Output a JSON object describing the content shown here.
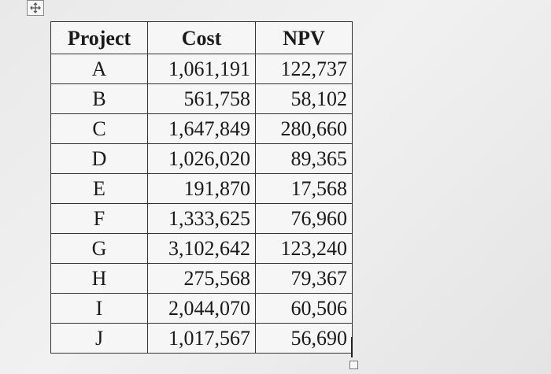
{
  "table": {
    "header": [
      "Project",
      "Cost",
      "NPV"
    ],
    "rows": [
      [
        "A",
        "1,061,191",
        "122,737"
      ],
      [
        "B",
        "561,758",
        "58,102"
      ],
      [
        "C",
        "1,647,849",
        "280,660"
      ],
      [
        "D",
        "1,026,020",
        "89,365"
      ],
      [
        "E",
        "191,870",
        "17,568"
      ],
      [
        "F",
        "1,333,625",
        "76,960"
      ],
      [
        "G",
        "3,102,642",
        "123,240"
      ],
      [
        "H",
        "275,568",
        "79,367"
      ],
      [
        "I",
        "2,044,070",
        "60,506"
      ],
      [
        "J",
        "1,017,567",
        "56,690"
      ]
    ]
  }
}
